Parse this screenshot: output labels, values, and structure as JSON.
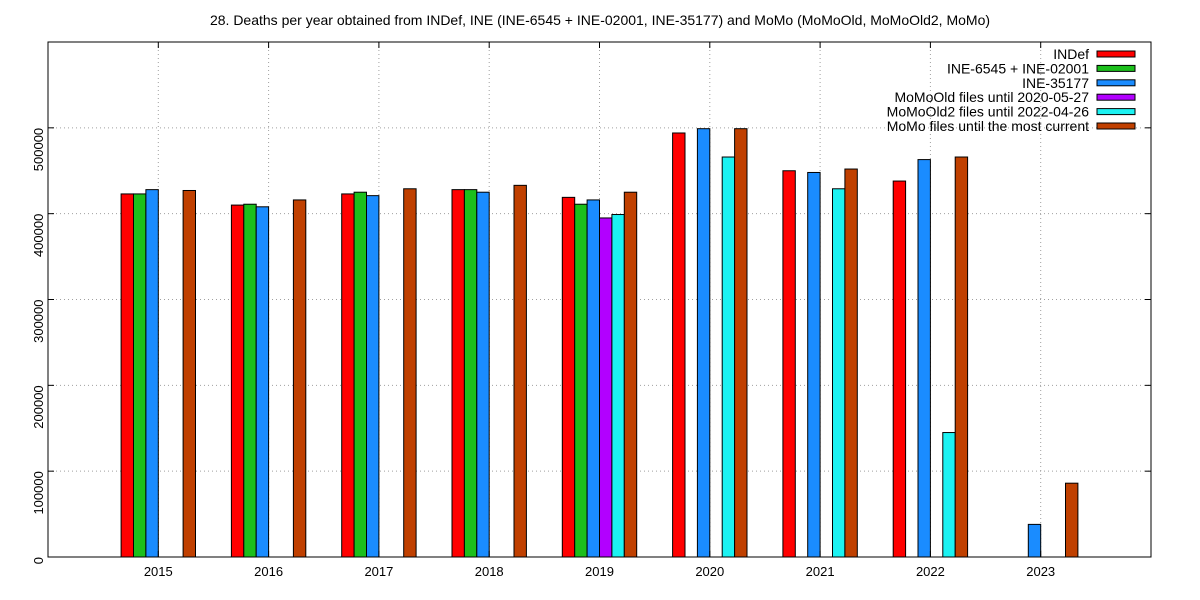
{
  "chart_data": {
    "type": "bar",
    "title": "28. Deaths per year obtained from INDef, INE (INE-6545 + INE-02001, INE-35177) and MoMo (MoMoOld, MoMoOld2, MoMo)",
    "xlabel": "",
    "ylabel": "",
    "categories": [
      "2015",
      "2016",
      "2017",
      "2018",
      "2019",
      "2020",
      "2021",
      "2022",
      "2023"
    ],
    "ylim": [
      0,
      600000
    ],
    "yticks": [
      0,
      100000,
      200000,
      300000,
      400000,
      500000
    ],
    "ytick_labels": [
      "0",
      "100000",
      "200000",
      "300000",
      "400000",
      "500000"
    ],
    "grid": true,
    "legend_position": "top-right",
    "series": [
      {
        "name": "INDef",
        "color": "#ff0000",
        "values": [
          423000,
          410000,
          423000,
          428000,
          419000,
          494000,
          450000,
          438000,
          null
        ]
      },
      {
        "name": "INE-6545 + INE-02001",
        "color": "#1cbf1c",
        "values": [
          423000,
          411000,
          425000,
          428000,
          411000,
          null,
          null,
          null,
          null
        ]
      },
      {
        "name": "INE-35177",
        "color": "#1a8cff",
        "values": [
          428000,
          408000,
          421000,
          425000,
          416000,
          499000,
          448000,
          463000,
          38000
        ]
      },
      {
        "name": "MoMoOld files until 2020-05-27",
        "color": "#b200ff",
        "values": [
          null,
          null,
          null,
          null,
          395000,
          null,
          null,
          null,
          null
        ]
      },
      {
        "name": "MoMoOld2 files until 2022-04-26",
        "color": "#1cf2f2",
        "values": [
          null,
          null,
          null,
          null,
          399000,
          466000,
          429000,
          145000,
          null
        ]
      },
      {
        "name": "MoMo files until the most current",
        "color": "#c04000",
        "values": [
          427000,
          416000,
          429000,
          433000,
          425000,
          499000,
          452000,
          466000,
          86000
        ]
      }
    ]
  }
}
